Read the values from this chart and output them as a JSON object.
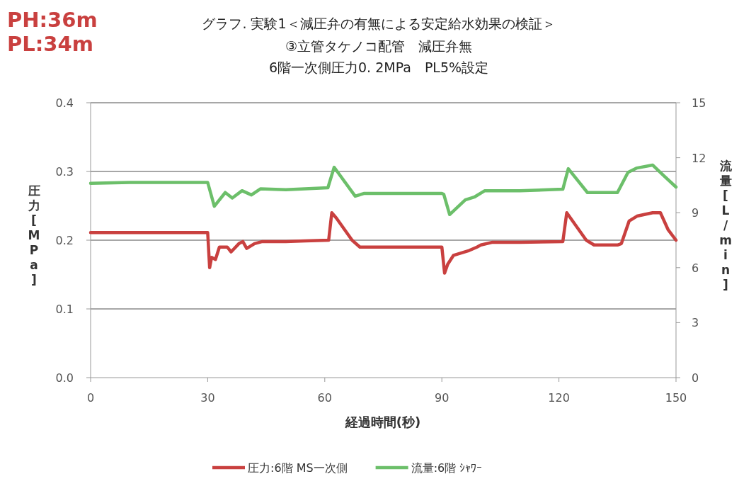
{
  "chart_data": {
    "type": "line",
    "title": "グラフ. 実験1＜減圧弁の有無による安定給水効果の検証＞",
    "subtitle": "③立管タケノコ配管　減圧弁無\n6階一次側圧力0. 2MPa　PL5%設定",
    "annotations": [
      "PH:36m",
      "PL:34m"
    ],
    "xlabel": "経過時間(秒)",
    "ylabel": "圧力[MPa]",
    "y2label": "流量[L/min]",
    "xlim": [
      0,
      150
    ],
    "xticks": [
      0,
      30,
      60,
      90,
      120,
      150
    ],
    "ylim": [
      0,
      0.4
    ],
    "yticks": [
      {
        "value": 0,
        "label": "0.0"
      },
      0.1,
      0.2,
      0.3,
      0.4
    ],
    "y2lim": [
      0,
      15
    ],
    "y2ticks": [
      0,
      3,
      6,
      9,
      12,
      15
    ],
    "grid": "y",
    "legend": "bottom",
    "marker": "none",
    "line_style": "solid",
    "series": [
      {
        "name": "圧力:6階 MS一次側",
        "color": "#c9403f",
        "x": [
          0,
          30,
          30.5,
          31,
          32,
          33,
          35,
          36,
          38,
          39,
          40,
          42,
          44,
          50,
          55,
          61,
          61.8,
          63,
          67,
          69,
          75,
          90,
          90.7,
          91.5,
          93,
          97,
          99,
          100,
          103,
          110,
          121,
          122,
          123,
          127,
          129,
          135,
          136,
          138,
          140,
          144,
          146,
          148,
          150
        ],
        "values": [
          0.211,
          0.211,
          0.16,
          0.175,
          0.172,
          0.19,
          0.19,
          0.183,
          0.195,
          0.198,
          0.188,
          0.195,
          0.198,
          0.198,
          0.199,
          0.2,
          0.24,
          0.232,
          0.2,
          0.19,
          0.19,
          0.19,
          0.152,
          0.165,
          0.178,
          0.185,
          0.19,
          0.193,
          0.197,
          0.197,
          0.198,
          0.24,
          0.232,
          0.2,
          0.193,
          0.193,
          0.195,
          0.228,
          0.235,
          0.24,
          0.24,
          0.215,
          0.2
        ]
      },
      {
        "name": "流量:6階 ｼｬﾜｰ",
        "color": "#6cbf6a",
        "axis": "y2",
        "x": [
          0,
          10,
          20,
          30,
          31.7,
          34.5,
          36.3,
          38.8,
          41.2,
          43.5,
          50,
          60.8,
          62.4,
          67.8,
          70,
          90,
          90.5,
          92,
          96,
          98.3,
          101,
          110,
          121,
          122.4,
          127.3,
          135,
          137.7,
          140,
          144,
          146.7,
          150
        ],
        "values": [
          10.6,
          10.65,
          10.65,
          10.65,
          9.35,
          10.1,
          9.8,
          10.2,
          9.97,
          10.3,
          10.25,
          10.36,
          11.48,
          9.9,
          10.05,
          10.05,
          10.0,
          8.9,
          9.7,
          9.85,
          10.2,
          10.2,
          10.28,
          11.4,
          10.1,
          10.1,
          11.2,
          11.44,
          11.6,
          11.05,
          10.4
        ]
      }
    ]
  }
}
